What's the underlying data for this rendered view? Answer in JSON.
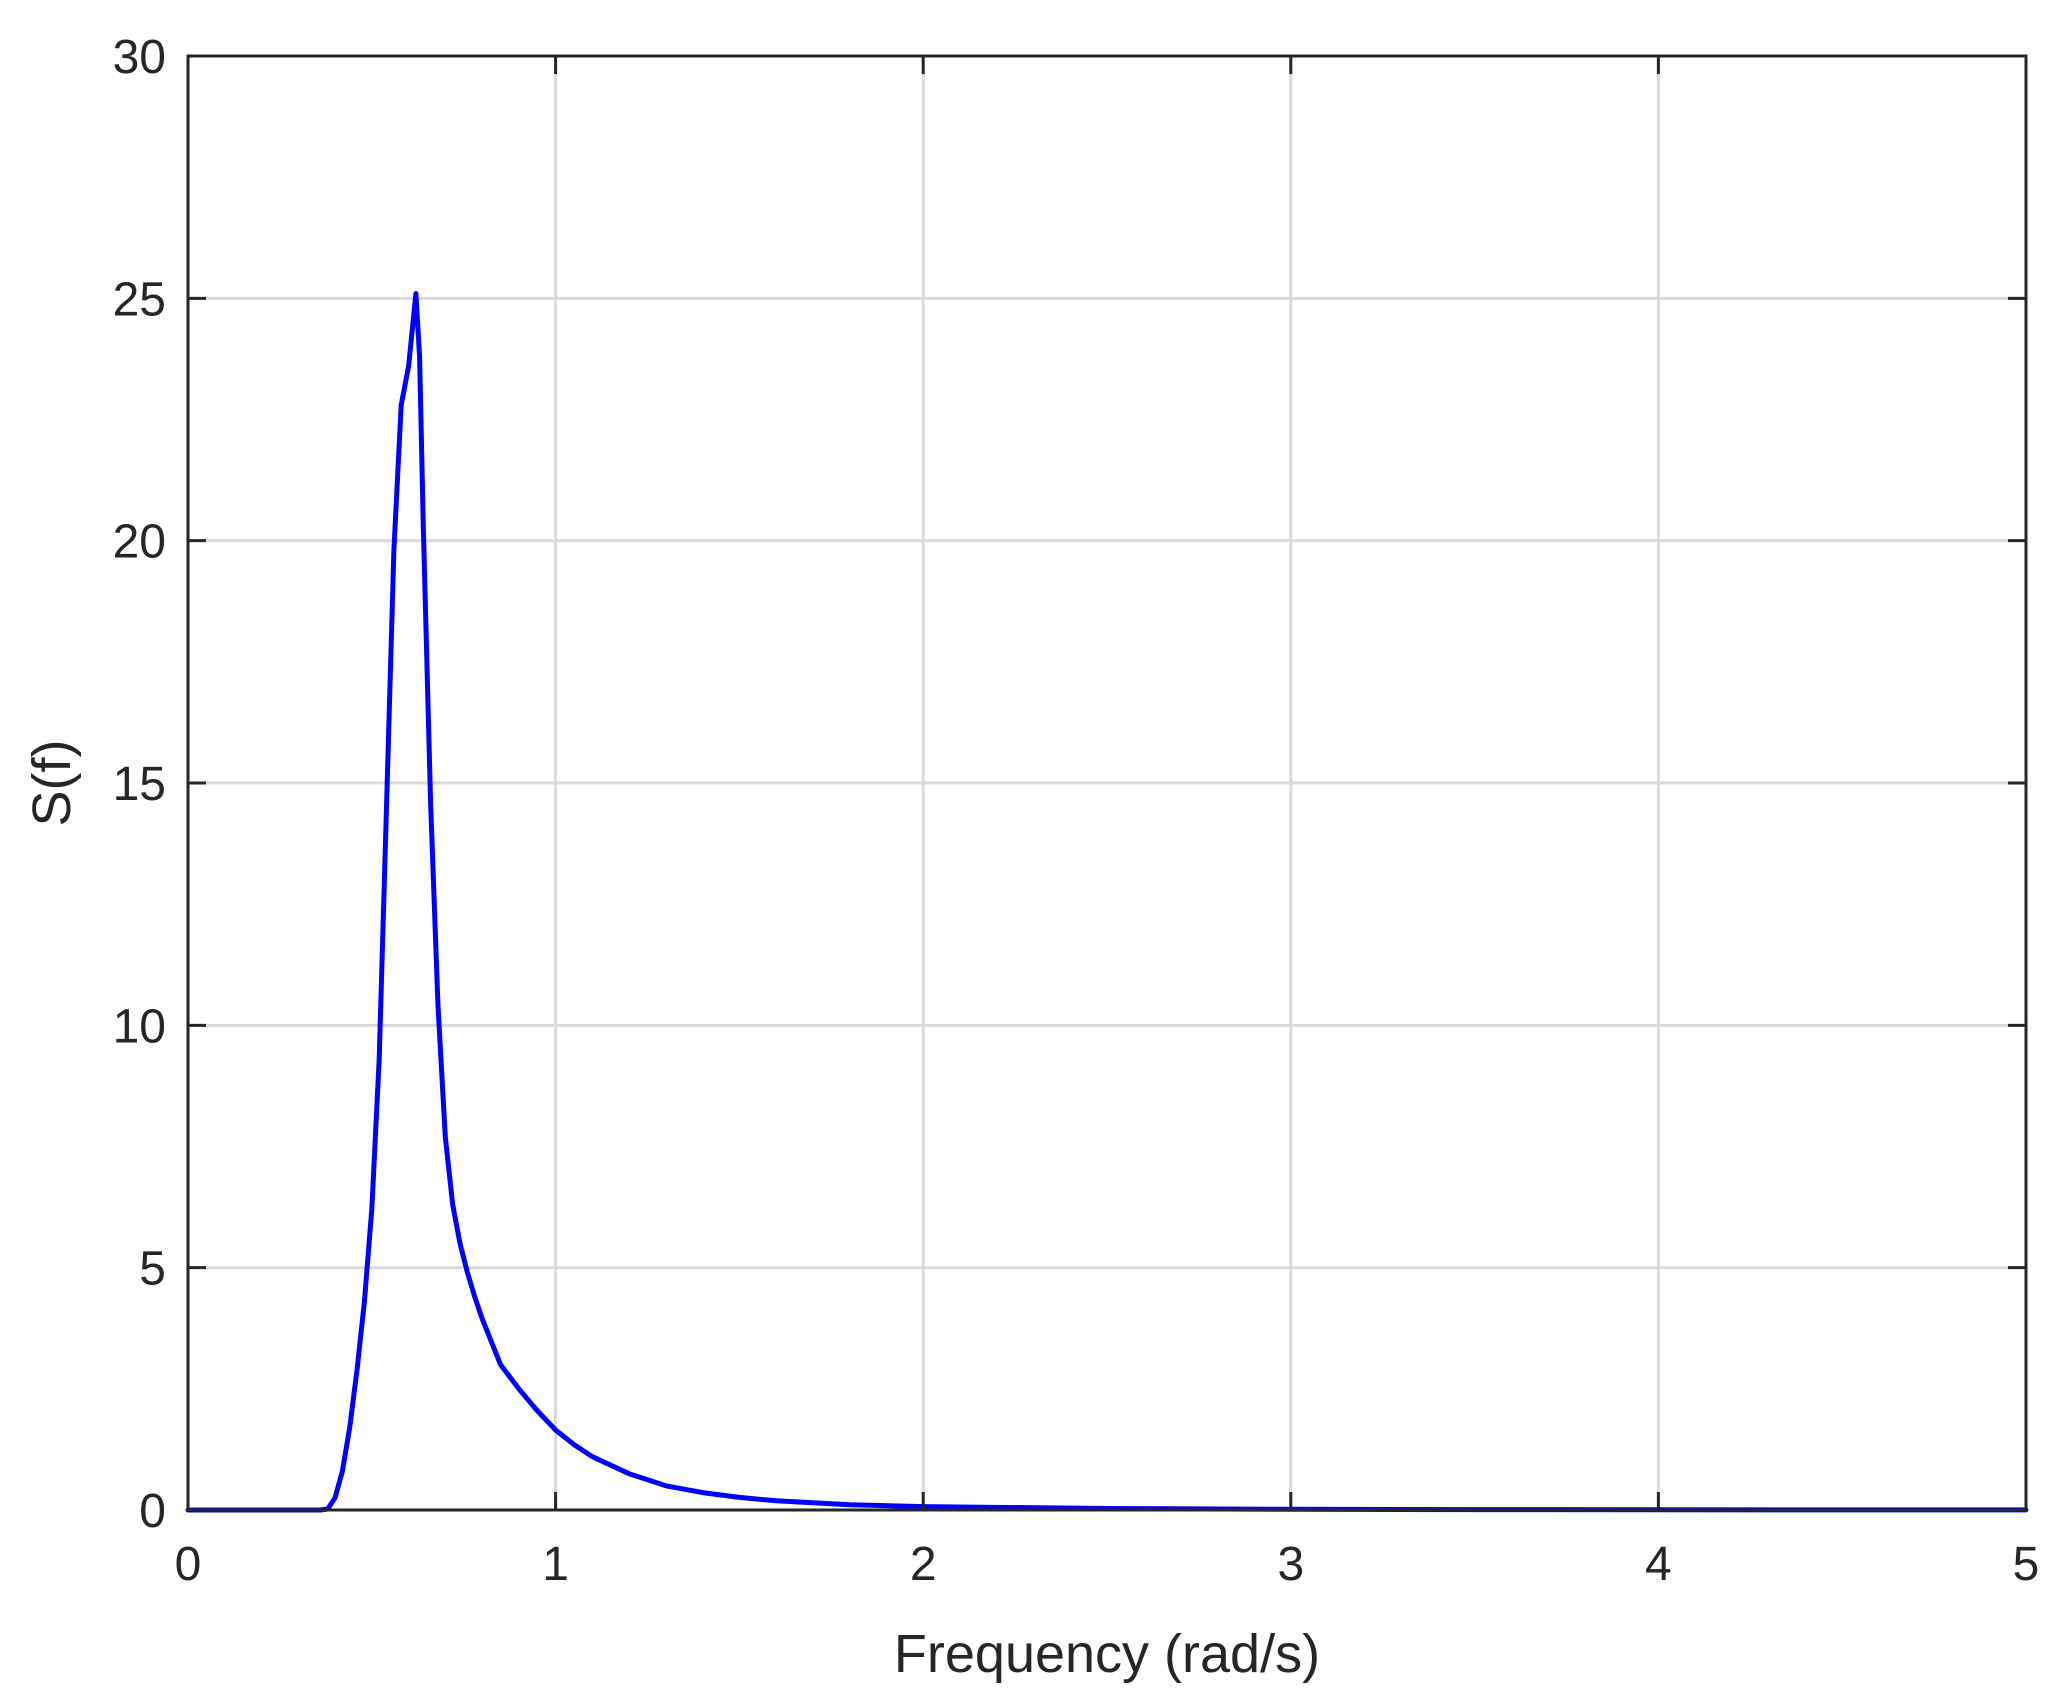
{
  "chart_data": {
    "type": "line",
    "title": "",
    "xlabel": "Frequency (rad/s)",
    "ylabel": "S(f)",
    "xlim": [
      0,
      5
    ],
    "ylim": [
      0,
      30
    ],
    "xticks": [
      0,
      1,
      2,
      3,
      4,
      5
    ],
    "yticks": [
      0,
      5,
      10,
      15,
      20,
      25,
      30
    ],
    "xtick_labels": [
      "0",
      "1",
      "2",
      "3",
      "4",
      "5"
    ],
    "ytick_labels": [
      "0",
      "5",
      "10",
      "15",
      "20",
      "25",
      "30"
    ],
    "grid": true,
    "legend": "none",
    "series": [
      {
        "color": "#0000ff",
        "x": [
          0,
          0.2,
          0.36,
          0.38,
          0.4,
          0.42,
          0.44,
          0.46,
          0.48,
          0.5,
          0.52,
          0.54,
          0.56,
          0.58,
          0.6,
          0.62,
          0.63,
          0.64,
          0.66,
          0.68,
          0.7,
          0.72,
          0.74,
          0.76,
          0.78,
          0.8,
          0.85,
          0.9,
          0.95,
          1.0,
          1.05,
          1.1,
          1.2,
          1.3,
          1.4,
          1.5,
          1.6,
          1.8,
          2.0,
          2.5,
          3.0,
          3.5,
          4.0,
          4.5,
          5.0
        ],
        "y": [
          0,
          0,
          0,
          0.02,
          0.25,
          0.8,
          1.7,
          2.9,
          4.3,
          6.2,
          9.3,
          14.5,
          19.8,
          22.8,
          23.6,
          25.1,
          23.8,
          20.3,
          14.6,
          10.4,
          7.7,
          6.3,
          5.5,
          4.9,
          4.4,
          3.95,
          3.0,
          2.5,
          2.05,
          1.65,
          1.35,
          1.1,
          0.75,
          0.5,
          0.36,
          0.26,
          0.19,
          0.11,
          0.07,
          0.03,
          0.015,
          0.008,
          0.005,
          0.003,
          0.002
        ]
      }
    ]
  }
}
